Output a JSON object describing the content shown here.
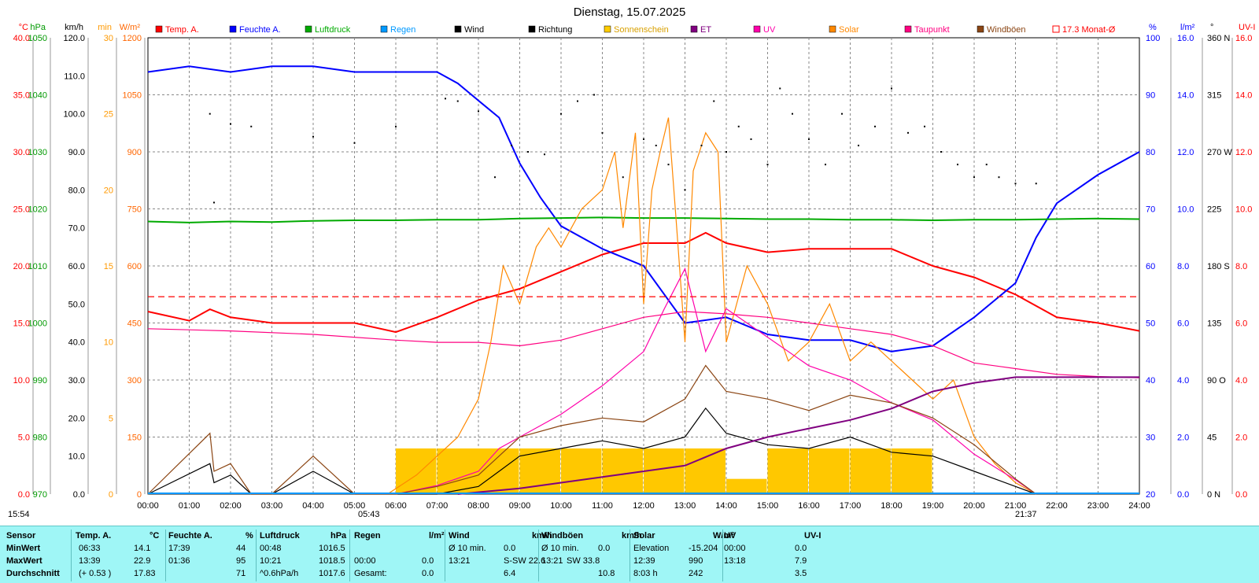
{
  "chart_data": {
    "type": "line",
    "title": "Dienstag, 15.07.2025",
    "x_ticks": [
      "00:00",
      "01:00",
      "02:00",
      "03:00",
      "04:00",
      "05:00",
      "06:00",
      "07:00",
      "08:00",
      "09:00",
      "10:00",
      "11:00",
      "12:00",
      "13:00",
      "14:00",
      "15:00",
      "16:00",
      "17:00",
      "18:00",
      "19:00",
      "20:00",
      "21:00",
      "22:00",
      "23:00",
      "24:00"
    ],
    "sunrise": "05:43",
    "sunset": "21:37",
    "sunshine_duration": "15:54",
    "grid": true,
    "axes_left": [
      {
        "unit": "°C",
        "color": "#ff0000",
        "ticks": [
          "0.0",
          "5.0",
          "10.0",
          "15.0",
          "20.0",
          "25.0",
          "30.0",
          "35.0",
          "40.0"
        ],
        "ylim": [
          0,
          40
        ]
      },
      {
        "unit": "hPa",
        "color": "#009900",
        "ticks": [
          "970",
          "980",
          "990",
          "1000",
          "1010",
          "1020",
          "1030",
          "1040",
          "1050"
        ],
        "ylim": [
          970,
          1050
        ]
      },
      {
        "unit": "km/h",
        "color": "#000000",
        "ticks": [
          "0.0",
          "10.0",
          "20.0",
          "30.0",
          "40.0",
          "50.0",
          "60.0",
          "70.0",
          "80.0",
          "90.0",
          "100.0",
          "110.0",
          "120.0"
        ],
        "ylim": [
          0,
          120
        ]
      },
      {
        "unit": "min",
        "color": "#ff9900",
        "ticks": [
          "0",
          "5",
          "10",
          "15",
          "20",
          "25",
          "30"
        ],
        "ylim": [
          0,
          30
        ]
      },
      {
        "unit": "W/m²",
        "color": "#ff6600",
        "ticks": [
          "0",
          "150",
          "300",
          "450",
          "600",
          "750",
          "900",
          "1050",
          "1200"
        ],
        "ylim": [
          0,
          1200
        ]
      }
    ],
    "axes_right": [
      {
        "unit": "%",
        "color": "#0000ff",
        "ticks": [
          "20",
          "30",
          "40",
          "50",
          "60",
          "70",
          "80",
          "90",
          "100"
        ],
        "ylim": [
          20,
          100
        ]
      },
      {
        "unit": "l/m²",
        "color": "#0000ff",
        "ticks": [
          "0.0",
          "2.0",
          "4.0",
          "6.0",
          "8.0",
          "10.0",
          "12.0",
          "14.0",
          "16.0"
        ],
        "ylim": [
          0,
          16
        ]
      },
      {
        "unit": "°",
        "color": "#000000",
        "ticks": [
          "0 N",
          "45",
          "90 O",
          "135",
          "180 S",
          "225",
          "270 W",
          "315",
          "360 N"
        ],
        "ylim": [
          0,
          360
        ]
      },
      {
        "unit": "UV-I",
        "color": "#ff0000",
        "ticks": [
          "0.0",
          "2.0",
          "4.0",
          "6.0",
          "8.0",
          "10.0",
          "12.0",
          "14.0",
          "16.0"
        ],
        "ylim": [
          0,
          16
        ]
      }
    ],
    "legend": [
      {
        "name": "Temp. A.",
        "color": "#ff0000"
      },
      {
        "name": "Feuchte A.",
        "color": "#0000ff"
      },
      {
        "name": "Luftdruck",
        "color": "#00aa00"
      },
      {
        "name": "Regen",
        "color": "#0099ff"
      },
      {
        "name": "Wind",
        "color": "#000000"
      },
      {
        "name": "Richtung",
        "color": "#000000"
      },
      {
        "name": "Sonnenschein",
        "color": "#ffcc00"
      },
      {
        "name": "ET",
        "color": "#800080"
      },
      {
        "name": "UV",
        "color": "#ff00aa"
      },
      {
        "name": "Solar",
        "color": "#ff8800"
      },
      {
        "name": "Taupunkt",
        "color": "#ff0080"
      },
      {
        "name": "Windböen",
        "color": "#8b4513"
      },
      {
        "name": "17.3 Monat-Ø",
        "color": "#ff0000"
      }
    ],
    "monthly_avg_temp": 17.3,
    "series": [
      {
        "name": "Temp. A.",
        "axis": "°C",
        "x": [
          0,
          1,
          1.5,
          2,
          3,
          4,
          5,
          6,
          7,
          8,
          9,
          10,
          11,
          12,
          12.5,
          13,
          13.5,
          14,
          15,
          16,
          17,
          18,
          19,
          20,
          21,
          22,
          23,
          24
        ],
        "values": [
          16.0,
          15.2,
          16.2,
          15.5,
          15.0,
          15.0,
          15.0,
          14.2,
          15.5,
          17.0,
          18.0,
          19.5,
          21.0,
          22.0,
          22.0,
          22.0,
          22.9,
          22.0,
          21.2,
          21.5,
          21.5,
          21.5,
          20.0,
          19.0,
          17.5,
          15.5,
          15.0,
          14.3
        ]
      },
      {
        "name": "Feuchte A.",
        "axis": "%",
        "x": [
          0,
          1,
          2,
          3,
          4,
          5,
          6,
          7,
          7.5,
          8,
          8.5,
          9,
          9.5,
          10,
          11,
          12,
          13,
          14,
          15,
          16,
          17,
          18,
          19,
          20,
          21,
          21.5,
          22,
          23,
          24
        ],
        "values": [
          94,
          95,
          94,
          95,
          95,
          94,
          94,
          94,
          92,
          89,
          86,
          78,
          72,
          67,
          63,
          60,
          50,
          51,
          48,
          47,
          47,
          45,
          46,
          51,
          57,
          65,
          71,
          76,
          80
        ]
      },
      {
        "name": "Luftdruck",
        "axis": "hPa",
        "x": [
          0,
          1,
          2,
          3,
          4,
          5,
          6,
          7,
          8,
          9,
          10,
          11,
          12,
          13,
          14,
          15,
          16,
          17,
          18,
          19,
          20,
          21,
          22,
          23,
          24
        ],
        "values": [
          1017.8,
          1017.6,
          1017.8,
          1017.7,
          1017.9,
          1018.0,
          1018.0,
          1018.1,
          1018.1,
          1018.3,
          1018.4,
          1018.5,
          1018.4,
          1018.4,
          1018.3,
          1018.2,
          1018.2,
          1018.1,
          1018.1,
          1018.0,
          1018.1,
          1018.1,
          1018.2,
          1018.3,
          1018.2
        ]
      },
      {
        "name": "Taupunkt",
        "axis": "°C",
        "x": [
          0,
          2,
          4,
          6,
          7,
          8,
          9,
          10,
          11,
          12,
          13,
          14,
          15,
          16,
          17,
          18,
          19,
          20,
          21,
          22,
          23,
          24
        ],
        "values": [
          14.5,
          14.3,
          14.0,
          13.5,
          13.3,
          13.3,
          13.0,
          13.5,
          14.5,
          15.5,
          16.0,
          15.8,
          15.5,
          15.0,
          14.5,
          14.0,
          13.0,
          11.5,
          11.0,
          10.5,
          10.3,
          10.2
        ]
      },
      {
        "name": "Solar",
        "axis": "W/m²",
        "x": [
          5.8,
          6.5,
          7,
          7.5,
          8,
          8.3,
          8.6,
          9,
          9.4,
          9.7,
          10,
          10.5,
          11,
          11.3,
          11.5,
          11.8,
          12,
          12.2,
          12.4,
          12.6,
          12.8,
          13,
          13.2,
          13.5,
          13.8,
          14,
          14.5,
          15,
          15.5,
          16,
          16.5,
          17,
          17.5,
          18,
          18.5,
          19,
          19.5,
          20,
          20.5,
          21,
          21.5
        ],
        "values": [
          0,
          50,
          100,
          150,
          250,
          400,
          600,
          500,
          650,
          700,
          650,
          750,
          800,
          900,
          700,
          950,
          500,
          800,
          900,
          990,
          700,
          400,
          850,
          950,
          900,
          400,
          600,
          500,
          350,
          400,
          500,
          350,
          400,
          350,
          300,
          250,
          300,
          150,
          80,
          30,
          0
        ]
      },
      {
        "name": "UV",
        "axis": "UV-I",
        "x": [
          6,
          7,
          8,
          8.5,
          9,
          10,
          11,
          12,
          12.5,
          13,
          13.5,
          14,
          15,
          16,
          17,
          18,
          19,
          20,
          21,
          21.5
        ],
        "values": [
          0,
          0.3,
          0.8,
          1.6,
          2.0,
          2.8,
          3.8,
          5.0,
          6.5,
          7.9,
          5.0,
          6.5,
          5.5,
          4.5,
          4.0,
          3.2,
          2.6,
          1.4,
          0.5,
          0
        ]
      },
      {
        "name": "Wind",
        "axis": "km/h",
        "x": [
          0,
          1.5,
          1.6,
          2,
          2.5,
          3,
          4,
          4.5,
          5,
          6,
          7,
          8,
          9,
          10,
          11,
          12,
          13,
          13.5,
          14,
          15,
          16,
          17,
          18,
          19,
          20,
          21,
          21.5
        ],
        "values": [
          0,
          8,
          3,
          5,
          0,
          0,
          6,
          3,
          0,
          0,
          0,
          2,
          10,
          12,
          14,
          12,
          15,
          22.6,
          16,
          13,
          12,
          15,
          11,
          10,
          6,
          2,
          0
        ]
      },
      {
        "name": "Windböen",
        "axis": "km/h",
        "x": [
          0,
          1.5,
          1.6,
          2,
          2.5,
          3,
          4,
          4.5,
          5,
          6,
          7,
          8,
          9,
          10,
          11,
          12,
          13,
          13.5,
          14,
          15,
          16,
          17,
          18,
          19,
          20,
          21,
          21.5
        ],
        "values": [
          0,
          16,
          6,
          8,
          0,
          0,
          10,
          5,
          0,
          0,
          2,
          5,
          15,
          18,
          20,
          19,
          25,
          33.8,
          27,
          25,
          22,
          26,
          24,
          20,
          13,
          4,
          0
        ]
      },
      {
        "name": "ET",
        "axis": "l/m²",
        "x": [
          7.5,
          9,
          10,
          11,
          12,
          13,
          14,
          15,
          16,
          17,
          18,
          19,
          20,
          21,
          24
        ],
        "values": [
          0,
          0.2,
          0.4,
          0.6,
          0.8,
          1.0,
          1.6,
          2.0,
          2.3,
          2.6,
          3.0,
          3.6,
          3.9,
          4.1,
          4.1
        ]
      },
      {
        "name": "Sonnenschein",
        "axis": "min",
        "x": [
          6,
          7,
          9,
          10,
          11,
          12,
          13,
          14,
          15,
          16,
          17,
          18,
          19,
          21.4
        ],
        "values": [
          3,
          3,
          3,
          3,
          3,
          3,
          3,
          1,
          3,
          3,
          3,
          3,
          0,
          3
        ]
      }
    ],
    "richtung_points": [
      [
        1.5,
        300
      ],
      [
        1.6,
        230
      ],
      [
        2.0,
        292
      ],
      [
        2.5,
        290
      ],
      [
        4.0,
        282
      ],
      [
        5.0,
        277
      ],
      [
        6.0,
        290
      ],
      [
        7.2,
        312
      ],
      [
        7.5,
        310
      ],
      [
        8.0,
        302
      ],
      [
        8.4,
        250
      ],
      [
        8.8,
        275
      ],
      [
        9.2,
        270
      ],
      [
        9.6,
        268
      ],
      [
        10.0,
        300
      ],
      [
        10.4,
        310
      ],
      [
        10.8,
        315
      ],
      [
        11.0,
        285
      ],
      [
        11.5,
        250
      ],
      [
        12.0,
        280
      ],
      [
        12.3,
        275
      ],
      [
        12.6,
        260
      ],
      [
        13.0,
        240
      ],
      [
        13.4,
        275
      ],
      [
        13.7,
        310
      ],
      [
        14.0,
        270
      ],
      [
        14.3,
        290
      ],
      [
        14.6,
        280
      ],
      [
        15.0,
        260
      ],
      [
        15.3,
        320
      ],
      [
        15.6,
        300
      ],
      [
        16.0,
        280
      ],
      [
        16.4,
        260
      ],
      [
        16.8,
        300
      ],
      [
        17.2,
        275
      ],
      [
        17.6,
        290
      ],
      [
        18.0,
        320
      ],
      [
        18.4,
        285
      ],
      [
        18.8,
        290
      ],
      [
        19.2,
        270
      ],
      [
        19.6,
        260
      ],
      [
        20.0,
        250
      ],
      [
        20.3,
        260
      ],
      [
        20.6,
        250
      ],
      [
        21.0,
        245
      ],
      [
        21.5,
        245
      ]
    ]
  },
  "stats": {
    "headers": [
      "Sensor",
      "Temp. A.",
      "°C",
      "Feuchte A.",
      "%",
      "Luftdruck",
      "hPa",
      "Regen",
      "l/m²",
      "Wind",
      "km/h",
      "Windböen",
      "km/h",
      "Solar",
      "W/m²",
      "UV",
      "UV-I"
    ],
    "rows": [
      [
        "MinWert",
        "06:33",
        "14.1",
        "17:39",
        "44",
        "00:48",
        "1016.5",
        "",
        "",
        "Ø 10 min.",
        "",
        "0.0",
        "Ø 10 min.",
        "",
        "0.0",
        "Elevation",
        "-15.204",
        "00:00",
        "0.0"
      ],
      [
        "MaxWert",
        "13:39",
        "22.9",
        "01:36",
        "95",
        "10:21",
        "1018.5",
        "00:00",
        "0.0",
        "13:21",
        "S-SW 22.6",
        "",
        "13:21",
        "SW 33.8",
        "",
        "12:39",
        "990",
        "13:18",
        "7.9"
      ],
      [
        "Durchschnitt",
        "(+ 0.53 )",
        "17.83",
        "",
        "71",
        "^0.6hPa/h",
        "1017.6",
        "Gesamt:",
        "0.0",
        "",
        "",
        "6.4",
        "",
        "",
        "10.8",
        "8:03 h",
        "242",
        "",
        "3.5"
      ]
    ]
  }
}
